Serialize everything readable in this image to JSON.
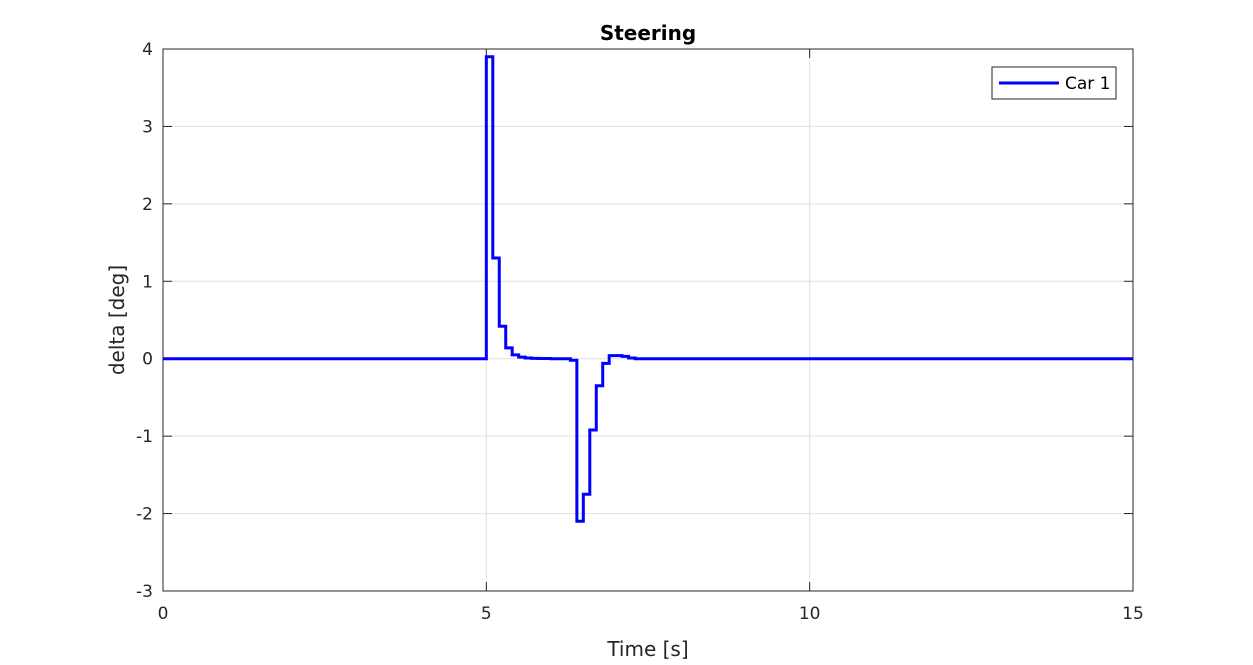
{
  "chart_data": {
    "type": "line",
    "title": "Steering",
    "xlabel": "Time [s]",
    "ylabel": "delta [deg]",
    "xlim": [
      0,
      15
    ],
    "ylim": [
      -3,
      4
    ],
    "xticks": [
      0,
      5,
      10,
      15
    ],
    "yticks": [
      -3,
      -2,
      -1,
      0,
      1,
      2,
      3,
      4
    ],
    "grid": true,
    "legend_position": "top-right",
    "series": [
      {
        "name": "Car 1",
        "color": "#0000ff",
        "step": true,
        "x": [
          0,
          4.99,
          5.0,
          5.1,
          5.2,
          5.3,
          5.4,
          5.5,
          5.6,
          5.7,
          5.8,
          5.9,
          6.0,
          6.1,
          6.2,
          6.3,
          6.4,
          6.5,
          6.6,
          6.7,
          6.8,
          6.9,
          7.0,
          7.1,
          7.2,
          7.3,
          15
        ],
        "y": [
          0,
          0,
          3.9,
          1.3,
          0.42,
          0.14,
          0.05,
          0.02,
          0.01,
          0.005,
          0.003,
          0.002,
          0.0,
          0.0,
          0.0,
          -0.02,
          -2.1,
          -1.75,
          -0.92,
          -0.35,
          -0.06,
          0.04,
          0.04,
          0.03,
          0.01,
          0.0,
          0.0
        ]
      }
    ]
  }
}
